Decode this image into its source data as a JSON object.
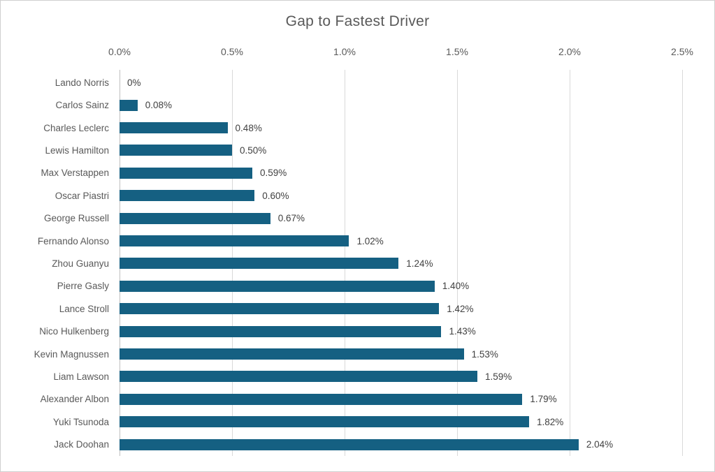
{
  "window": {
    "background_color": "#ffffff",
    "border_color": "#cfcfcf"
  },
  "chart_data": {
    "type": "bar",
    "orientation": "horizontal",
    "title": "Gap to Fastest Driver",
    "categories": [
      "Lando Norris",
      "Carlos Sainz",
      "Charles Leclerc",
      "Lewis Hamilton",
      "Max Verstappen",
      "Oscar Piastri",
      "George Russell",
      "Fernando Alonso",
      "Zhou Guanyu",
      "Pierre Gasly",
      "Lance Stroll",
      "Nico Hulkenberg",
      "Kevin Magnussen",
      "Liam Lawson",
      "Alexander Albon",
      "Yuki Tsunoda",
      "Jack Doohan"
    ],
    "values": [
      0,
      0.08,
      0.48,
      0.5,
      0.59,
      0.6,
      0.67,
      1.02,
      1.24,
      1.4,
      1.42,
      1.43,
      1.53,
      1.59,
      1.79,
      1.82,
      2.04
    ],
    "data_labels": [
      "0%",
      "0.08%",
      "0.48%",
      "0.50%",
      "0.59%",
      "0.60%",
      "0.67%",
      "1.02%",
      "1.24%",
      "1.40%",
      "1.42%",
      "1.43%",
      "1.53%",
      "1.59%",
      "1.79%",
      "1.82%",
      "2.04%"
    ],
    "x_axis_ticks": [
      "0.0%",
      "0.5%",
      "1.0%",
      "1.5%",
      "2.0%",
      "2.5%"
    ],
    "xlim": [
      0,
      2.5
    ],
    "xlabel": "",
    "ylabel": "",
    "legend": "none",
    "grid": "vertical",
    "axis_position": "top",
    "colors": {
      "bar": "#156082",
      "gridline": "#d9d9d9",
      "axis_line": "#bfbfbf",
      "title": "#595959",
      "tick_label": "#595959",
      "category_label": "#595959",
      "data_label": "#404040"
    }
  }
}
